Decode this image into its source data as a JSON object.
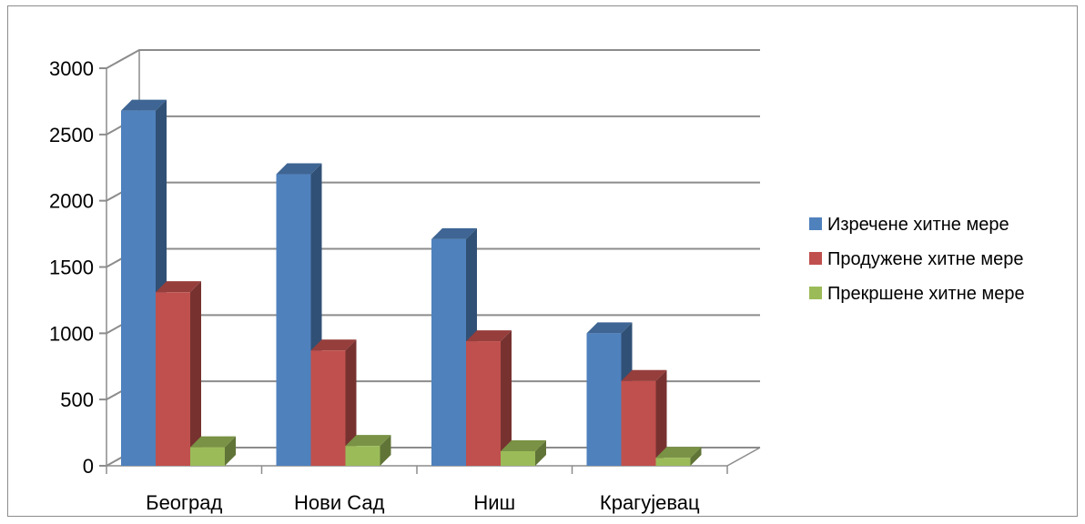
{
  "chart_data": {
    "type": "bar",
    "categories": [
      "Београд",
      "Нови Сад",
      "Ниш",
      "Крагујевац"
    ],
    "series": [
      {
        "name": "Изречене хитне мере",
        "values": [
          2680,
          2200,
          1710,
          1000
        ],
        "color": "#4F81BD"
      },
      {
        "name": "Продужене хитне мере",
        "values": [
          1310,
          870,
          940,
          640
        ],
        "color": "#C0504D"
      },
      {
        "name": "Прекршене хитне мере",
        "values": [
          140,
          150,
          110,
          60
        ],
        "color": "#9BBB59"
      }
    ],
    "ylim": [
      0,
      3000
    ],
    "yticks": [
      0,
      500,
      1000,
      1500,
      2000,
      2500,
      3000
    ],
    "grid": true,
    "legend_position": "right",
    "style": "3d-clustered-column"
  }
}
